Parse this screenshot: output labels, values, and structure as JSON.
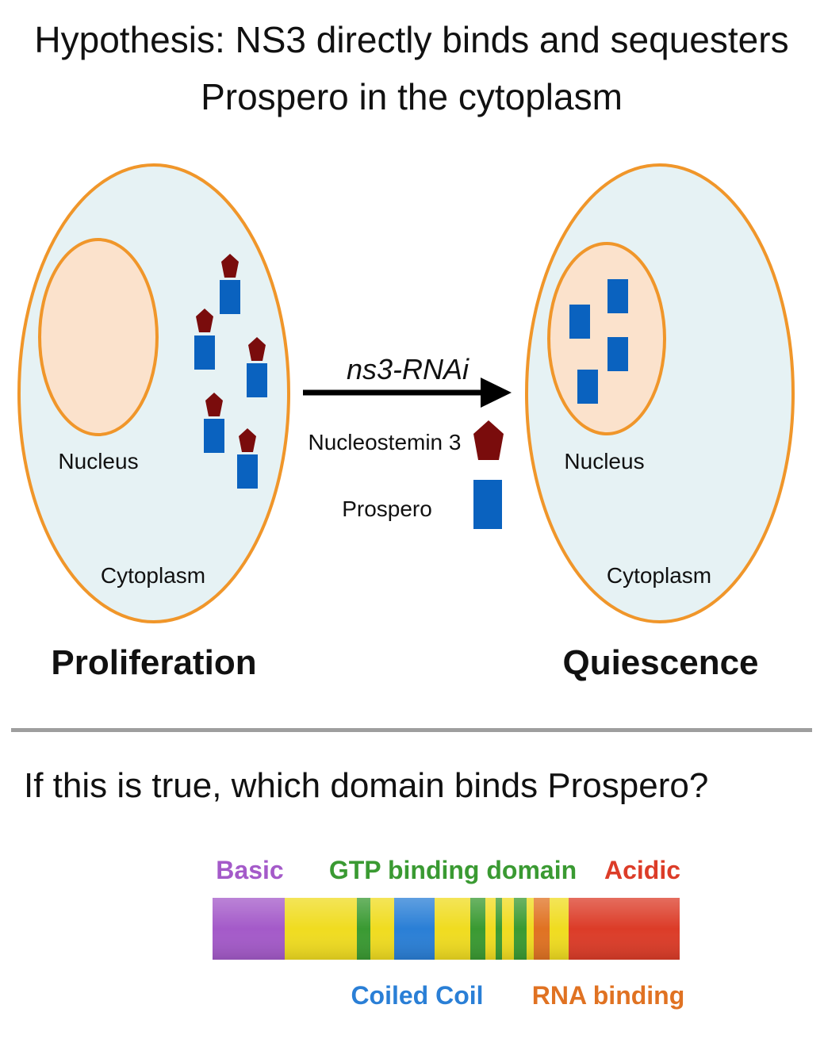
{
  "title": {
    "line1": "Hypothesis: NS3 directly binds and sequesters",
    "line2": "Prospero in the cytoplasm"
  },
  "cell_left": {
    "nucleus_label": "Nucleus",
    "cytoplasm_label": "Cytoplasm",
    "state_label": "Proliferation"
  },
  "cell_right": {
    "nucleus_label": "Nucleus",
    "cytoplasm_label": "Cytoplasm",
    "state_label": "Quiescence"
  },
  "arrow": {
    "label": "ns3-RNAi"
  },
  "legend": {
    "ns3_label": "Nucleostemin 3",
    "prospero_label": "Prospero"
  },
  "question": "If this is true, which domain binds Prospero?",
  "domains": {
    "basic": "Basic",
    "gtp": "GTP binding domain",
    "acidic": "Acidic",
    "coiled_coil": "Coiled Coil",
    "rna_binding": "RNA binding"
  },
  "colors": {
    "cell_outline": "#f0962a",
    "cytoplasm_fill": "#e6f2f4",
    "nucleus_fill": "#fbe2cc",
    "ns3": "#7a0c0c",
    "prospero": "#0a62bf",
    "basic": "#a45ac9",
    "gtp": "#3a9a32",
    "acidic": "#dc3c28",
    "coiled_coil": "#2a7fd6",
    "rna_binding": "#e07222",
    "backbone": "#f0dc20"
  }
}
